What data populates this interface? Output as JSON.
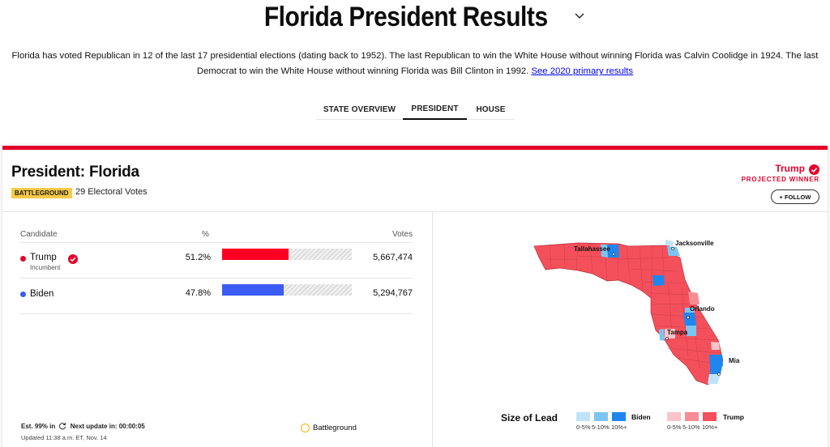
{
  "header": {
    "title": "Florida President Results",
    "intro_text": "Florida has voted Republican in 12 of the last 17 presidential elections (dating back to 1952). The last Republican to win the White House without winning Florida was Calvin Coolidge in 1924. The last Democrat to win the White House without winning Florida was Bill Clinton in 1992.",
    "intro_link": "See 2020 primary results"
  },
  "tabs": [
    "STATE OVERVIEW",
    "PRESIDENT",
    "HOUSE"
  ],
  "race": {
    "title": "President: Florida",
    "badge": "BATTLEGROUND",
    "electoral_votes": "29 Electoral Votes",
    "winner": "Trump",
    "winner_label": "PROJECTED WINNER",
    "follow_label": "+ FOLLOW"
  },
  "table": {
    "headers": {
      "candidate": "Candidate",
      "pct": "%",
      "votes": "Votes"
    },
    "rows": [
      {
        "name": "Trump",
        "sub": "Incumbent",
        "pct": "51.2%",
        "pct_value": 51.2,
        "votes": "5,667,474",
        "color": "#ff0021"
      },
      {
        "name": "Biden",
        "sub": "",
        "pct": "47.8%",
        "pct_value": 47.8,
        "votes": "5,294,767",
        "color": "#3b5bf2"
      }
    ]
  },
  "footer": {
    "est": "Est. 99% in",
    "next_update": "Next update in: 00:00:05",
    "updated": "Updated 11:38 a.m. ET, Nov. 14",
    "battleground_legend": "Battleground"
  },
  "map": {
    "cities": [
      "Tallahassee",
      "Jacksonville",
      "Orlando",
      "Tampa",
      "Miami"
    ]
  },
  "lead_legend": {
    "title": "Size of Lead",
    "biden": "Biden",
    "trump": "Trump",
    "ranges": [
      "0-5%",
      "5-10%",
      "10%+"
    ],
    "biden_colors": [
      "#bfe3fb",
      "#7cc5f3",
      "#1f86ef"
    ],
    "trump_colors": [
      "#fcc4c8",
      "#f98c93",
      "#f4505b"
    ]
  }
}
